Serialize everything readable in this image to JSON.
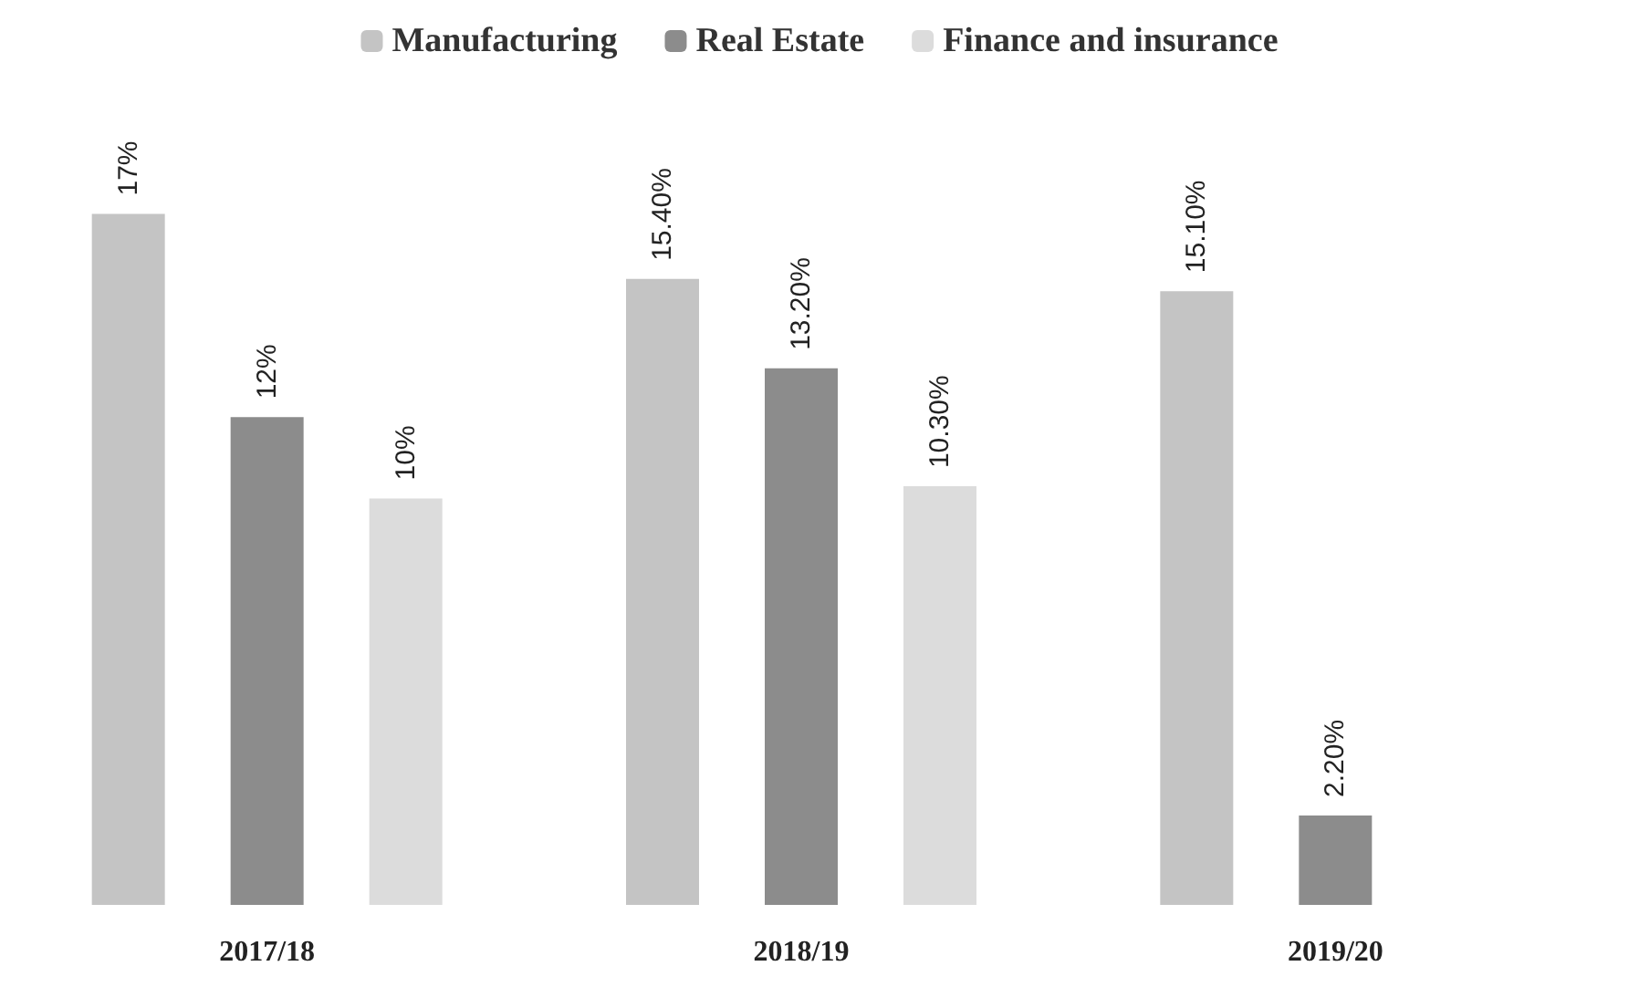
{
  "chart_data": {
    "type": "bar",
    "categories": [
      "2017/18",
      "2018/19",
      "2019/20"
    ],
    "series": [
      {
        "name": "Manufacturing",
        "color": "#c4c4c4",
        "values": [
          17,
          15.4,
          15.1
        ],
        "value_labels": [
          "17%",
          "15.40%",
          "15.10%"
        ]
      },
      {
        "name": "Real Estate",
        "color": "#8c8c8c",
        "values": [
          12,
          13.2,
          2.2
        ],
        "value_labels": [
          "12%",
          "13.20%",
          "2.20%"
        ]
      },
      {
        "name": "Finance and insurance",
        "color": "#dcdcdc",
        "values": [
          10,
          10.3,
          null
        ],
        "value_labels": [
          "10%",
          "10.30%",
          null
        ]
      }
    ],
    "legend": "top"
  }
}
